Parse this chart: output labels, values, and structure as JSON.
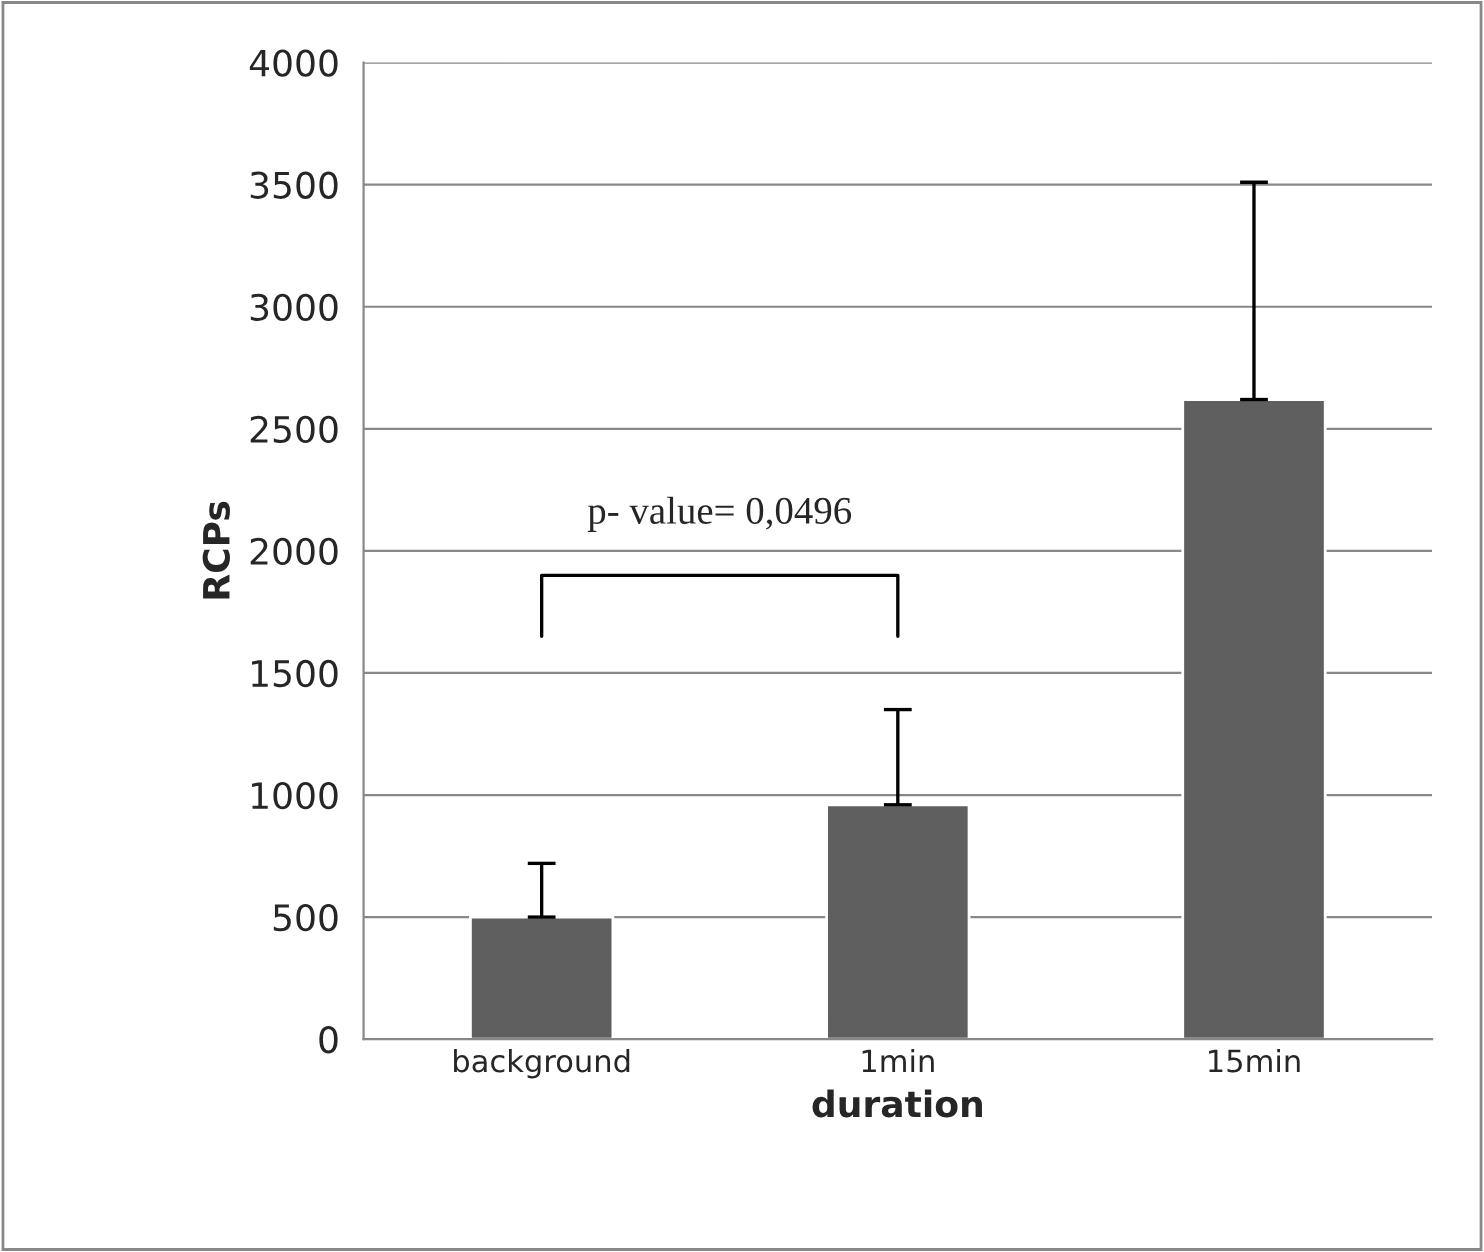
{
  "chart_data": {
    "type": "bar",
    "xlabel": "duration",
    "ylabel": "RCPs",
    "categories": [
      "background",
      "1min",
      "15min"
    ],
    "values": [
      500,
      960,
      2620
    ],
    "errors": [
      [
        500,
        720
      ],
      [
        960,
        1350
      ],
      [
        2620,
        3510
      ]
    ],
    "color": "#5f5f5f",
    "ylim": [
      0,
      4000
    ],
    "yticks": [
      0,
      500,
      1000,
      1500,
      2000,
      2500,
      3000,
      3500,
      4000
    ],
    "grid": "y",
    "annotations": [
      {
        "text": "p- value= 0,0496"
      }
    ]
  }
}
